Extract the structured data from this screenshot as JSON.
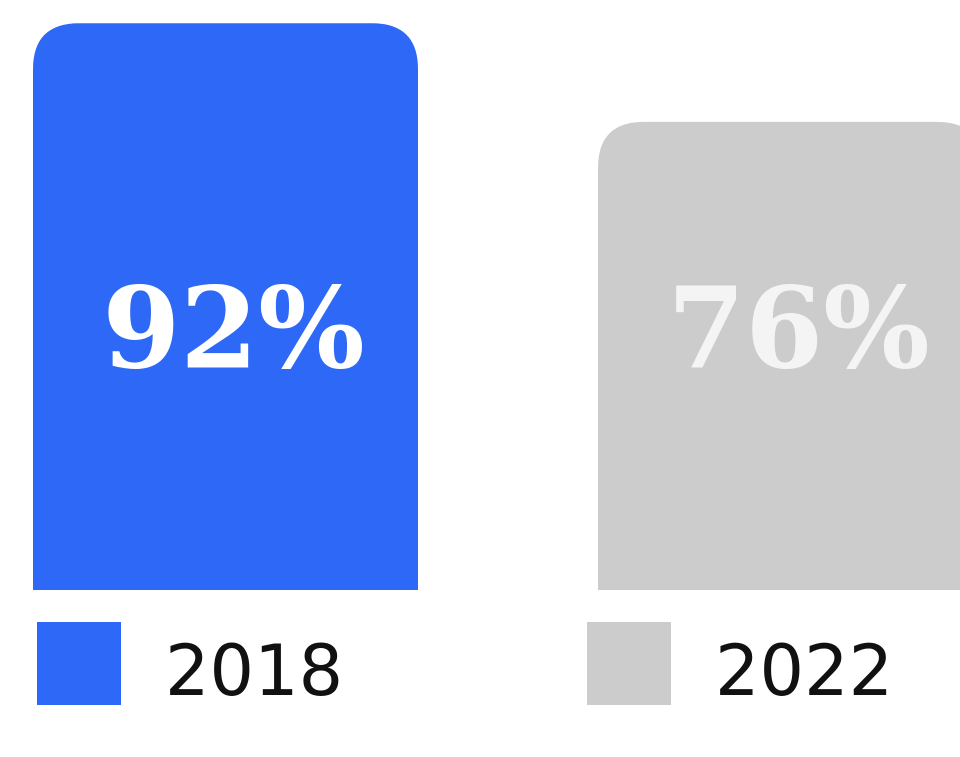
{
  "chart_data": {
    "type": "bar",
    "categories": [
      "2018",
      "2022"
    ],
    "values": [
      92,
      76
    ],
    "value_labels": [
      "92%",
      "76%"
    ],
    "colors": [
      "#2d68f6",
      "#cccccc"
    ],
    "label_colors": [
      "#ffffff",
      "#f4f4f4"
    ]
  }
}
